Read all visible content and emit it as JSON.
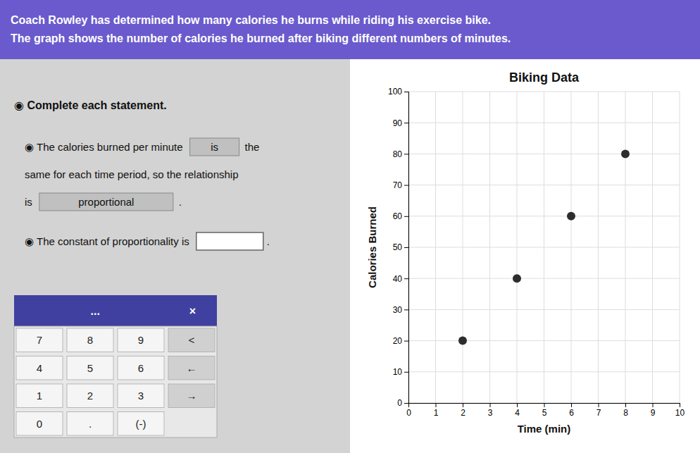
{
  "chart_data": {
    "type": "scatter",
    "title": "Biking Data",
    "x_label": "Time (min)",
    "y_label": "Calories Burned",
    "x": [
      2,
      4,
      6,
      8
    ],
    "values": [
      20,
      40,
      60,
      80
    ],
    "color": "#2d2d2d",
    "xlim": [
      0,
      10
    ],
    "ylim": [
      0,
      100
    ],
    "xticks": [
      0,
      1,
      2,
      3,
      4,
      5,
      6,
      7,
      8,
      9,
      10
    ],
    "yticks": [
      0,
      10,
      20,
      30,
      40,
      50,
      60,
      70,
      80,
      90,
      100
    ],
    "grid": true
  },
  "worksheet": {
    "banner": [
      "Coach Rowley has determined how many calories he burns while riding his exercise bike.",
      "The graph shows the number of calories he burned after biking different numbers of minutes."
    ],
    "heading": "◉  Complete each statement.",
    "statements": [
      [
        "◉  The calories burned per minute",
        "is",
        "the"
      ],
      [
        "same for each time period, so the relationship"
      ],
      [
        "is",
        "proportional",
        "."
      ],
      [
        "◉  The constant of proportionality is",
        "."
      ]
    ],
    "keypad": {
      "header": [
        "...",
        "×"
      ],
      "keys": [
        [
          "7",
          "8",
          "9",
          "<"
        ],
        [
          "4",
          "5",
          "6",
          "←"
        ],
        [
          "1",
          "2",
          "3",
          "→"
        ],
        [
          "0",
          ".",
          "(-)"
        ]
      ]
    }
  }
}
